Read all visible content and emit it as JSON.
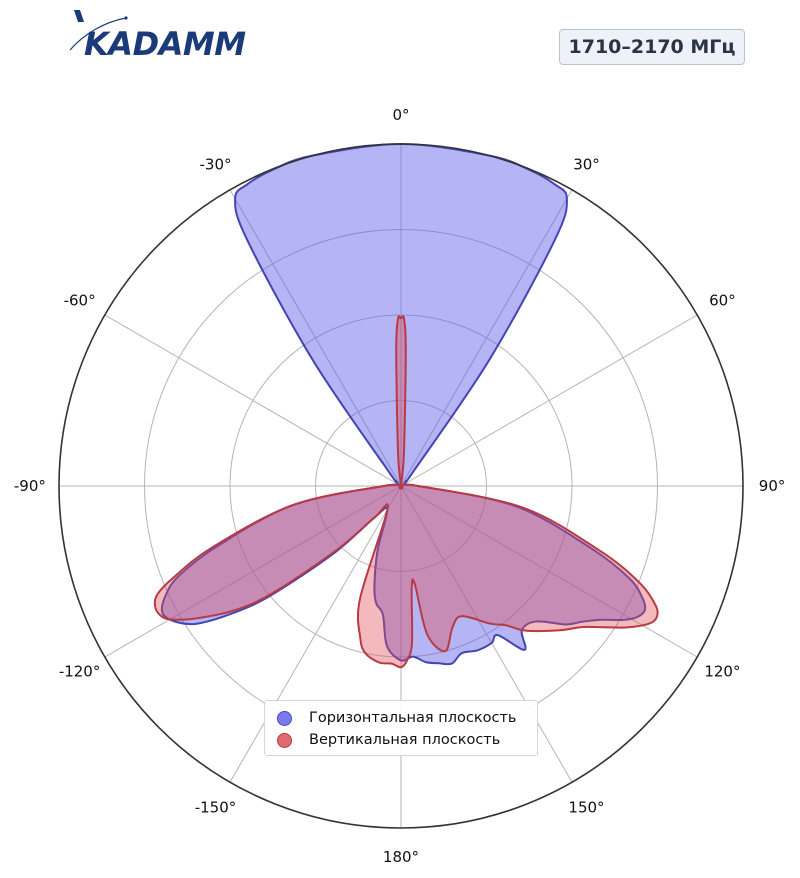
{
  "header": {
    "logo_text": "KADAMM",
    "frequency_badge": "1710–2170 МГц"
  },
  "colors": {
    "horizontal": "#5b5bd6",
    "vertical": "#c8404a",
    "brand": "#1b3a7a"
  },
  "chart_data": {
    "type": "polar",
    "theta_direction": "clockwise",
    "theta_zero": "top",
    "angle_tick_labels": [
      "0°",
      "30°",
      "60°",
      "90°",
      "120°",
      "150°",
      "180°",
      "-150°",
      "-120°",
      "-90°",
      "-60°",
      "-30°"
    ],
    "radial_range": [
      0,
      1
    ],
    "radial_gridlines": [
      0.25,
      0.5,
      0.75,
      1.0
    ],
    "grid": true,
    "legend_position": "lower-center",
    "series": [
      {
        "name": "Горизонтальная плоскость",
        "key": "horizontal",
        "points": [
          [
            -180,
            0.51
          ],
          [
            -175,
            0.47
          ],
          [
            -172,
            0.38
          ],
          [
            -168,
            0.35
          ],
          [
            -165,
            0.3
          ],
          [
            -160,
            0.2
          ],
          [
            -150,
            0.08
          ],
          [
            -140,
            0.12
          ],
          [
            -135,
            0.28
          ],
          [
            -130,
            0.5
          ],
          [
            -127,
            0.62
          ],
          [
            -124,
            0.72
          ],
          [
            -121,
            0.77
          ],
          [
            -118,
            0.79
          ],
          [
            -115,
            0.76
          ],
          [
            -112,
            0.7
          ],
          [
            -108,
            0.56
          ],
          [
            -100,
            0.32
          ],
          [
            -90,
            0.05
          ],
          [
            -80,
            0.0
          ],
          [
            -60,
            0.01
          ],
          [
            -45,
            0.02
          ],
          [
            -40,
            0.06
          ],
          [
            -35,
            0.45
          ],
          [
            -32,
            0.85
          ],
          [
            -30,
            0.97
          ],
          [
            -27,
            0.99
          ],
          [
            -22,
            0.998
          ],
          [
            -15,
            1.0
          ],
          [
            0,
            1.0
          ],
          [
            15,
            1.0
          ],
          [
            22,
            0.998
          ],
          [
            27,
            0.99
          ],
          [
            30,
            0.97
          ],
          [
            32,
            0.85
          ],
          [
            35,
            0.45
          ],
          [
            40,
            0.06
          ],
          [
            45,
            0.02
          ],
          [
            60,
            0.01
          ],
          [
            80,
            0.0
          ],
          [
            90,
            0.05
          ],
          [
            100,
            0.34
          ],
          [
            108,
            0.58
          ],
          [
            112,
            0.72
          ],
          [
            115,
            0.78
          ],
          [
            117,
            0.8
          ],
          [
            119,
            0.79
          ],
          [
            121,
            0.76
          ],
          [
            124,
            0.7
          ],
          [
            127,
            0.66
          ],
          [
            130,
            0.63
          ],
          [
            135,
            0.56
          ],
          [
            140,
            0.55
          ],
          [
            143,
            0.6
          ],
          [
            147,
            0.52
          ],
          [
            150,
            0.53
          ],
          [
            155,
            0.53
          ],
          [
            160,
            0.52
          ],
          [
            164,
            0.54
          ],
          [
            168,
            0.53
          ],
          [
            172,
            0.52
          ],
          [
            176,
            0.5
          ],
          [
            180,
            0.51
          ]
        ]
      },
      {
        "name": "Вертикальная плоскость",
        "key": "vertical",
        "points": [
          [
            -180,
            0.53
          ],
          [
            -177,
            0.52
          ],
          [
            -173,
            0.52
          ],
          [
            -168,
            0.5
          ],
          [
            -165,
            0.46
          ],
          [
            -160,
            0.35
          ],
          [
            -150,
            0.08
          ],
          [
            -140,
            0.12
          ],
          [
            -135,
            0.26
          ],
          [
            -130,
            0.48
          ],
          [
            -127,
            0.6
          ],
          [
            -123,
            0.71
          ],
          [
            -120,
            0.78
          ],
          [
            -118,
            0.8
          ],
          [
            -116,
            0.8
          ],
          [
            -114,
            0.78
          ],
          [
            -112,
            0.72
          ],
          [
            -108,
            0.58
          ],
          [
            -100,
            0.32
          ],
          [
            -90,
            0.05
          ],
          [
            -80,
            0.0
          ],
          [
            -30,
            0.0
          ],
          [
            -5,
            0.1
          ],
          [
            -2,
            0.4
          ],
          [
            -1,
            0.49
          ],
          [
            0,
            0.49
          ],
          [
            1,
            0.49
          ],
          [
            2,
            0.4
          ],
          [
            5,
            0.1
          ],
          [
            30,
            0.0
          ],
          [
            80,
            0.0
          ],
          [
            90,
            0.05
          ],
          [
            100,
            0.36
          ],
          [
            108,
            0.61
          ],
          [
            112,
            0.75
          ],
          [
            115,
            0.82
          ],
          [
            117,
            0.84
          ],
          [
            119,
            0.83
          ],
          [
            122,
            0.78
          ],
          [
            125,
            0.72
          ],
          [
            128,
            0.67
          ],
          [
            132,
            0.63
          ],
          [
            137,
            0.58
          ],
          [
            140,
            0.55
          ],
          [
            143,
            0.51
          ],
          [
            147,
            0.48
          ],
          [
            155,
            0.42
          ],
          [
            160,
            0.44
          ],
          [
            165,
            0.5
          ],
          [
            170,
            0.44
          ],
          [
            172,
            0.29
          ],
          [
            174,
            0.3
          ],
          [
            176,
            0.46
          ],
          [
            178,
            0.51
          ],
          [
            180,
            0.53
          ]
        ]
      }
    ]
  }
}
